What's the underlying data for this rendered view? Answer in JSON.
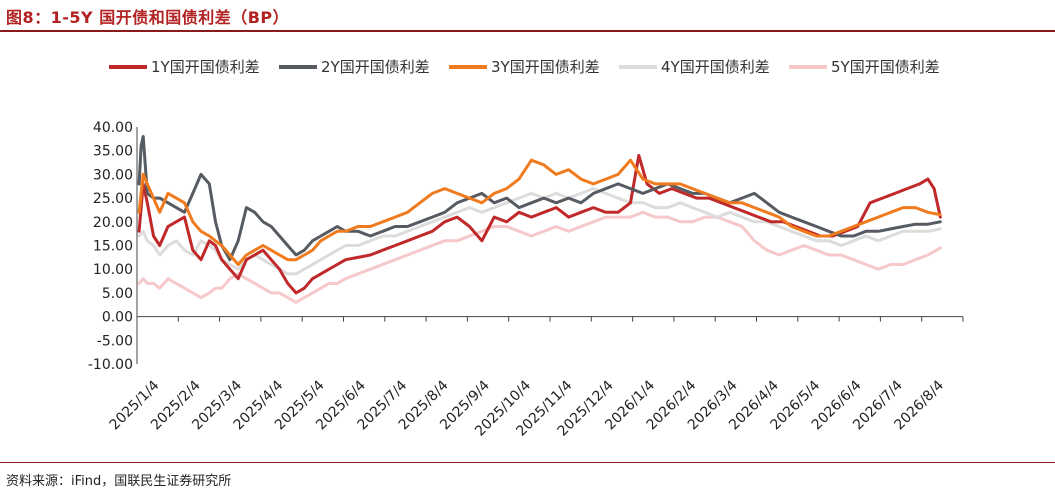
{
  "title": "图8：1-5Y 国开债和国债利差（BP）",
  "source": "资料来源：iFind，国联民生证券研究所",
  "chart_data": {
    "type": "line",
    "title": "图8：1-5Y 国开债和国债利差（BP）",
    "xlabel": "",
    "ylabel": "",
    "ylim": [
      -10,
      40
    ],
    "yticks": [
      "40.00",
      "35.00",
      "30.00",
      "25.00",
      "20.00",
      "15.00",
      "10.00",
      "5.00",
      "0.00",
      "-5.00",
      "-10.00"
    ],
    "x_tick_labels": [
      "2025/1/4",
      "2025/2/4",
      "2025/3/4",
      "2025/4/4",
      "2025/5/4",
      "2025/6/4",
      "2025/7/4",
      "2025/8/4",
      "2025/9/4",
      "2025/10/4",
      "2025/11/4",
      "2025/12/4",
      "2026/1/4",
      "2026/2/4",
      "2026/3/4",
      "2026/4/4",
      "2026/5/4",
      "2026/6/4",
      "2026/7/4",
      "2026/8/4"
    ],
    "legend_position": "top",
    "grid": false,
    "x_unit": "month index from 2025/1/4",
    "series": [
      {
        "name": "1Y国开国债利差",
        "color": "#c0282a",
        "width": 3,
        "x": [
          0,
          0.1,
          0.2,
          0.35,
          0.5,
          0.7,
          0.9,
          1.1,
          1.3,
          1.5,
          1.7,
          1.85,
          2.0,
          2.2,
          2.4,
          2.6,
          2.8,
          3.0,
          3.2,
          3.4,
          3.6,
          3.8,
          4.0,
          4.2,
          4.4,
          4.6,
          4.8,
          5.0,
          5.3,
          5.6,
          5.9,
          6.2,
          6.5,
          6.8,
          7.1,
          7.4,
          7.7,
          8.0,
          8.3,
          8.6,
          8.9,
          9.2,
          9.5,
          9.8,
          10.1,
          10.4,
          10.7,
          11.0,
          11.3,
          11.6,
          11.9,
          12.1,
          12.3,
          12.6,
          12.9,
          13.2,
          13.5,
          13.8,
          14.1,
          14.4,
          14.7,
          15.0,
          15.3,
          15.6,
          15.9,
          16.2,
          16.5,
          16.8,
          17.1,
          17.4,
          17.7,
          18.0,
          18.3,
          18.6,
          18.9,
          19.1,
          19.25,
          19.4
        ],
        "y": [
          18,
          28,
          24,
          17,
          15,
          19,
          20,
          21,
          14,
          12,
          16,
          15,
          12,
          10,
          8,
          12,
          13,
          14,
          12,
          10,
          7,
          5,
          6,
          8,
          9,
          10,
          11,
          12,
          12.5,
          13,
          14,
          15,
          16,
          17,
          18,
          20,
          21,
          19,
          16,
          21,
          20,
          22,
          21,
          22,
          23,
          21,
          22,
          23,
          22,
          22,
          24,
          34,
          28,
          26,
          27,
          26,
          25,
          25,
          24,
          23,
          22,
          21,
          20,
          20,
          19,
          18,
          17,
          17,
          18,
          19,
          24,
          25,
          26,
          27,
          28,
          29,
          27,
          21
        ]
      },
      {
        "name": "2Y国开国债利差",
        "color": "#555b61",
        "width": 3,
        "x": [
          0,
          0.05,
          0.1,
          0.2,
          0.35,
          0.5,
          0.7,
          0.9,
          1.1,
          1.3,
          1.5,
          1.7,
          1.85,
          2.0,
          2.2,
          2.4,
          2.6,
          2.8,
          3.0,
          3.2,
          3.4,
          3.6,
          3.8,
          4.0,
          4.2,
          4.4,
          4.6,
          4.8,
          5.0,
          5.3,
          5.6,
          5.9,
          6.2,
          6.5,
          6.8,
          7.1,
          7.4,
          7.7,
          8.0,
          8.3,
          8.6,
          8.9,
          9.2,
          9.5,
          9.8,
          10.1,
          10.4,
          10.7,
          11.0,
          11.3,
          11.6,
          11.9,
          12.2,
          12.5,
          12.8,
          13.1,
          13.4,
          13.7,
          14.0,
          14.3,
          14.6,
          14.9,
          15.2,
          15.5,
          15.8,
          16.1,
          16.4,
          16.7,
          17.0,
          17.3,
          17.6,
          17.9,
          18.2,
          18.5,
          18.8,
          19.1,
          19.4
        ],
        "y": [
          28,
          36,
          38,
          26,
          25,
          25,
          24,
          23,
          22,
          26,
          30,
          28,
          20,
          15,
          12,
          16,
          23,
          22,
          20,
          19,
          17,
          15,
          13,
          14,
          16,
          17,
          18,
          19,
          18,
          18,
          17,
          18,
          19,
          19,
          20,
          21,
          22,
          24,
          25,
          26,
          24,
          25,
          23,
          24,
          25,
          24,
          25,
          24,
          26,
          27,
          28,
          27,
          26,
          27,
          28,
          27,
          26,
          26,
          25,
          24,
          25,
          26,
          24,
          22,
          21,
          20,
          19,
          18,
          17,
          17,
          18,
          18,
          18.5,
          19,
          19.5,
          19.5,
          20
        ]
      },
      {
        "name": "3Y国开国债利差",
        "color": "#f07b1e",
        "width": 3,
        "x": [
          0,
          0.1,
          0.2,
          0.35,
          0.5,
          0.7,
          0.9,
          1.1,
          1.3,
          1.5,
          1.7,
          1.85,
          2.0,
          2.2,
          2.4,
          2.6,
          2.8,
          3.0,
          3.2,
          3.4,
          3.6,
          3.8,
          4.0,
          4.2,
          4.4,
          4.6,
          4.8,
          5.0,
          5.3,
          5.6,
          5.9,
          6.2,
          6.5,
          6.8,
          7.1,
          7.4,
          7.7,
          8.0,
          8.3,
          8.6,
          8.9,
          9.2,
          9.5,
          9.8,
          10.1,
          10.4,
          10.7,
          11.0,
          11.3,
          11.6,
          11.9,
          12.2,
          12.5,
          12.8,
          13.1,
          13.4,
          13.7,
          14.0,
          14.3,
          14.6,
          14.9,
          15.2,
          15.5,
          15.8,
          16.1,
          16.4,
          16.7,
          17.0,
          17.3,
          17.6,
          17.9,
          18.2,
          18.5,
          18.8,
          19.1,
          19.4
        ],
        "y": [
          22,
          30,
          28,
          25,
          22,
          26,
          25,
          24,
          20,
          18,
          17,
          16,
          15,
          13,
          11,
          13,
          14,
          15,
          14,
          13,
          12,
          12,
          13,
          14,
          16,
          17,
          18,
          18,
          19,
          19,
          20,
          21,
          22,
          24,
          26,
          27,
          26,
          25,
          24,
          26,
          27,
          29,
          33,
          32,
          30,
          31,
          29,
          28,
          29,
          30,
          33,
          29,
          28,
          28,
          28,
          27,
          26,
          25,
          24,
          24,
          23,
          22,
          21,
          19,
          18,
          17,
          17,
          18,
          19,
          20,
          21,
          22,
          23,
          23,
          22,
          21.5
        ]
      },
      {
        "name": "4Y国开国债利差",
        "color": "#dcdcdc",
        "width": 3,
        "x": [
          0,
          0.1,
          0.2,
          0.35,
          0.5,
          0.7,
          0.9,
          1.1,
          1.3,
          1.5,
          1.7,
          1.85,
          2.0,
          2.2,
          2.4,
          2.6,
          2.8,
          3.0,
          3.2,
          3.4,
          3.6,
          3.8,
          4.0,
          4.2,
          4.4,
          4.6,
          4.8,
          5.0,
          5.3,
          5.6,
          5.9,
          6.2,
          6.5,
          6.8,
          7.1,
          7.4,
          7.7,
          8.0,
          8.3,
          8.6,
          8.9,
          9.2,
          9.5,
          9.8,
          10.1,
          10.4,
          10.7,
          11.0,
          11.3,
          11.6,
          11.9,
          12.2,
          12.5,
          12.8,
          13.1,
          13.4,
          13.7,
          14.0,
          14.3,
          14.6,
          14.9,
          15.2,
          15.5,
          15.8,
          16.1,
          16.4,
          16.7,
          17.0,
          17.3,
          17.6,
          17.9,
          18.2,
          18.5,
          18.8,
          19.1,
          19.4
        ],
        "y": [
          17,
          18,
          16,
          15,
          13,
          15,
          16,
          14,
          13,
          16,
          15,
          14,
          12,
          11,
          10,
          12,
          13,
          12,
          11,
          10,
          9,
          9,
          10,
          11,
          12,
          13,
          14,
          15,
          15,
          16,
          17,
          17,
          18,
          19,
          20,
          21,
          22,
          23,
          22,
          23,
          24,
          25,
          26,
          25,
          26,
          25,
          26,
          27,
          26,
          25,
          24,
          24,
          23,
          23,
          24,
          23,
          22,
          21,
          22,
          21,
          20,
          20,
          19,
          18,
          17,
          16,
          16,
          15,
          16,
          17,
          16,
          17,
          18,
          18,
          18,
          18.5
        ]
      },
      {
        "name": "5Y国开国债利差",
        "color": "#f6c8c9",
        "width": 3,
        "x": [
          0,
          0.1,
          0.2,
          0.35,
          0.5,
          0.7,
          0.9,
          1.1,
          1.3,
          1.5,
          1.7,
          1.85,
          2.0,
          2.2,
          2.4,
          2.6,
          2.8,
          3.0,
          3.2,
          3.4,
          3.6,
          3.8,
          4.0,
          4.2,
          4.4,
          4.6,
          4.8,
          5.0,
          5.3,
          5.6,
          5.9,
          6.2,
          6.5,
          6.8,
          7.1,
          7.4,
          7.7,
          8.0,
          8.3,
          8.6,
          8.9,
          9.2,
          9.5,
          9.8,
          10.1,
          10.4,
          10.7,
          11.0,
          11.3,
          11.6,
          11.9,
          12.2,
          12.5,
          12.8,
          13.1,
          13.4,
          13.7,
          14.0,
          14.3,
          14.6,
          14.9,
          15.2,
          15.5,
          15.8,
          16.1,
          16.4,
          16.7,
          17.0,
          17.3,
          17.6,
          17.9,
          18.2,
          18.5,
          18.8,
          19.1,
          19.4
        ],
        "y": [
          7,
          8,
          7,
          7,
          6,
          8,
          7,
          6,
          5,
          4,
          5,
          6,
          6,
          8,
          9,
          8,
          7,
          6,
          5,
          5,
          4,
          3,
          4,
          5,
          6,
          7,
          7,
          8,
          9,
          10,
          11,
          12,
          13,
          14,
          15,
          16,
          16,
          17,
          18,
          19,
          19,
          18,
          17,
          18,
          19,
          18,
          19,
          20,
          21,
          21,
          21,
          22,
          21,
          21,
          20,
          20,
          21,
          21,
          20,
          19,
          16,
          14,
          13,
          14,
          15,
          14,
          13,
          13,
          12,
          11,
          10,
          11,
          11,
          12,
          13,
          14.5
        ]
      }
    ]
  }
}
